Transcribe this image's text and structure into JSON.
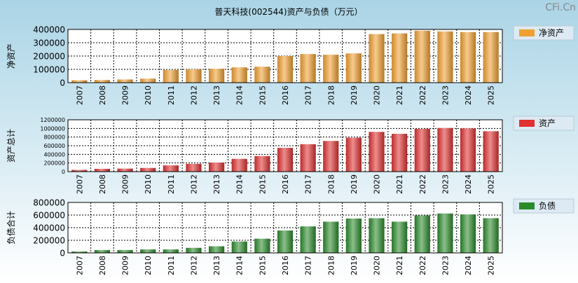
{
  "title": "普天科技(002544)资产与负债（万元）",
  "watermark": "CFi.Cn",
  "colors": {
    "background_top": "#aad4e6",
    "background_bottom": "#ffffff",
    "plot_bg": "#ffffff",
    "grid": "#000000",
    "text": "#000000",
    "watermark": "#888888",
    "legend_bg": "#ddeaf3"
  },
  "chart_data": [
    {
      "type": "bar",
      "ylabel": "净资产",
      "legend": "净资产",
      "color": "#f0a030",
      "ylim": [
        0,
        400000
      ],
      "yticks": [
        0,
        100000,
        200000,
        300000,
        400000
      ],
      "categories": [
        "2007",
        "2008",
        "2009",
        "2010",
        "2011",
        "2012",
        "2013",
        "2014",
        "2015",
        "2016",
        "2017",
        "2018",
        "2019",
        "2020",
        "2021",
        "2022",
        "2023",
        "2024",
        "2025"
      ],
      "values": [
        18000,
        20000,
        24000,
        30000,
        95000,
        100000,
        105000,
        115000,
        120000,
        200000,
        215000,
        210000,
        220000,
        365000,
        370000,
        390000,
        385000,
        380000,
        380000
      ],
      "grid": true,
      "legend_position": "right"
    },
    {
      "type": "bar",
      "ylabel": "资产总计",
      "legend": "资产",
      "color": "#e03030",
      "ylim": [
        0,
        1200000
      ],
      "yticks": [
        0,
        200000,
        400000,
        600000,
        800000,
        1000000,
        1200000
      ],
      "categories": [
        "2007",
        "2008",
        "2009",
        "2010",
        "2011",
        "2012",
        "2013",
        "2014",
        "2015",
        "2016",
        "2017",
        "2018",
        "2019",
        "2020",
        "2021",
        "2022",
        "2023",
        "2024",
        "2025"
      ],
      "values": [
        40000,
        65000,
        70000,
        85000,
        145000,
        180000,
        210000,
        295000,
        360000,
        550000,
        635000,
        710000,
        785000,
        920000,
        875000,
        990000,
        1010000,
        1000000,
        935000
      ],
      "grid": true,
      "legend_position": "right"
    },
    {
      "type": "bar",
      "ylabel": "负债合计",
      "legend": "负债",
      "color": "#2a8a2a",
      "ylim": [
        0,
        800000
      ],
      "yticks": [
        0,
        200000,
        400000,
        600000,
        800000
      ],
      "categories": [
        "2007",
        "2008",
        "2009",
        "2010",
        "2011",
        "2012",
        "2013",
        "2014",
        "2015",
        "2016",
        "2017",
        "2018",
        "2019",
        "2020",
        "2021",
        "2022",
        "2023",
        "2024",
        "2025"
      ],
      "values": [
        22000,
        45000,
        45000,
        55000,
        55000,
        80000,
        105000,
        180000,
        225000,
        355000,
        420000,
        495000,
        545000,
        550000,
        495000,
        595000,
        625000,
        610000,
        550000
      ],
      "grid": true,
      "legend_position": "right"
    }
  ]
}
